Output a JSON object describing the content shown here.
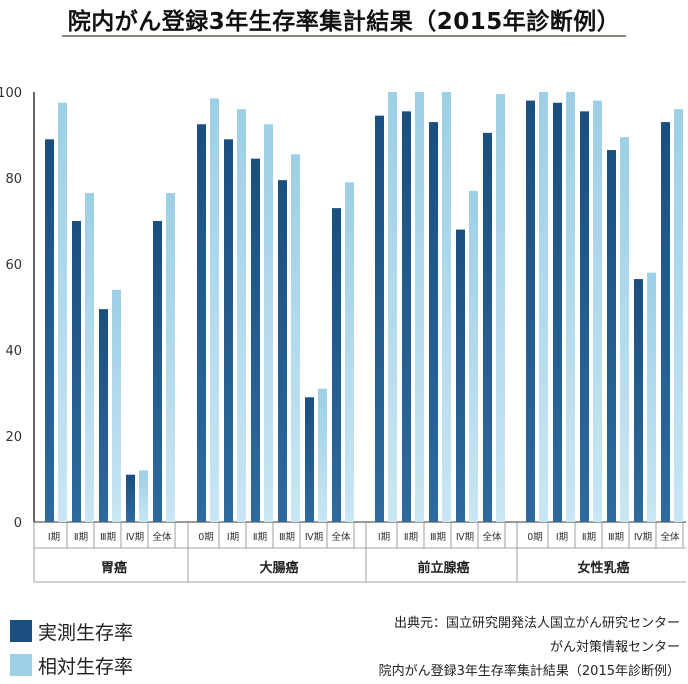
{
  "title": "院内がん登録3年生存率集計結果（2015年診断例）",
  "legend": {
    "items": [
      {
        "label": "実測生存率",
        "color": "#1a4f80"
      },
      {
        "label": "相対生存率",
        "color": "#9dcfe6"
      }
    ]
  },
  "source": {
    "lines": [
      "出典元：国立研究開発法人国立がん研究センター",
      "がん対策情報センター",
      "院内がん登録3年生存率集計結果（2015年診断例）"
    ]
  },
  "chart_data": {
    "type": "bar",
    "ylim": [
      0,
      100
    ],
    "yticks": [
      "0",
      "20",
      "40",
      "60",
      "80",
      "100"
    ],
    "grid": false,
    "legend_position": "bottom-left",
    "series_names": [
      "実測生存率",
      "相対生存率"
    ],
    "groups": [
      {
        "name": "胃癌",
        "categories": [
          "Ⅰ期",
          "Ⅱ期",
          "Ⅲ期",
          "Ⅳ期",
          "全体"
        ],
        "actual": [
          89,
          70,
          49.5,
          11,
          70
        ],
        "relative": [
          97.5,
          76.5,
          54,
          12,
          76.5
        ]
      },
      {
        "name": "大腸癌",
        "categories": [
          "0期",
          "Ⅰ期",
          "Ⅱ期",
          "Ⅲ期",
          "Ⅳ期",
          "全体"
        ],
        "actual": [
          92.5,
          89,
          84.5,
          79.5,
          29,
          73
        ],
        "relative": [
          98.5,
          96,
          92.5,
          85.5,
          31,
          79
        ]
      },
      {
        "name": "前立腺癌",
        "categories": [
          "Ⅰ期",
          "Ⅱ期",
          "Ⅲ期",
          "Ⅳ期",
          "全体"
        ],
        "actual": [
          94.5,
          95.5,
          93,
          68,
          90.5
        ],
        "relative": [
          100,
          100,
          100,
          77,
          99.5
        ]
      },
      {
        "name": "女性乳癌",
        "categories": [
          "0期",
          "Ⅰ期",
          "Ⅱ期",
          "Ⅲ期",
          "Ⅳ期",
          "全体"
        ],
        "actual": [
          98,
          97.5,
          95.5,
          86.5,
          56.5,
          93
        ],
        "relative": [
          100,
          100,
          98,
          89.5,
          58,
          96
        ]
      }
    ]
  }
}
